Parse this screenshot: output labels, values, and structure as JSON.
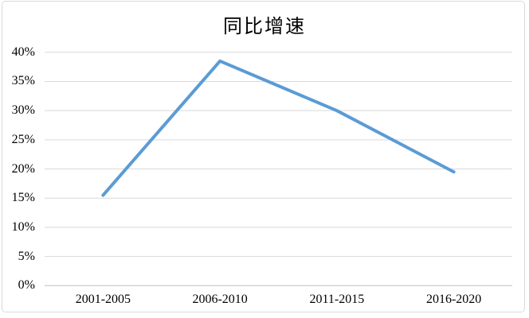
{
  "chart_data": {
    "type": "line",
    "title": "同比增速",
    "categories": [
      "2001-2005",
      "2006-2010",
      "2011-2015",
      "2016-2020"
    ],
    "series": [
      {
        "name": "同比增速",
        "values": [
          15.5,
          38.5,
          30,
          19.5
        ]
      }
    ],
    "xlabel": "",
    "ylabel": "",
    "ylim": [
      0,
      40
    ],
    "ytick_step": 5,
    "ytick_labels": [
      "0%",
      "5%",
      "10%",
      "15%",
      "20%",
      "25%",
      "30%",
      "35%",
      "40%"
    ],
    "grid": "horizontal",
    "legend": "none",
    "markers": "none"
  },
  "colors": {
    "line": "#5B9BD5",
    "gridline": "#D9D9D9",
    "axis_line": "#BFBFBF",
    "frame_border": "#D9D9D9",
    "text": "#000000",
    "background": "#FFFFFF"
  }
}
